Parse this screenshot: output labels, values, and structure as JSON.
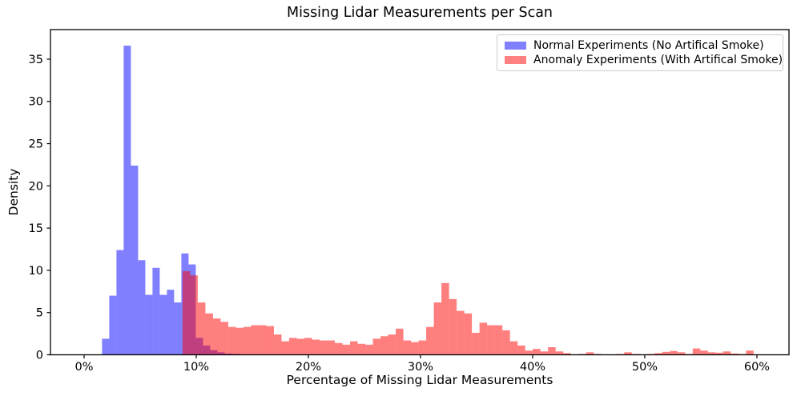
{
  "title": "Missing Lidar Measurements per Scan",
  "chart_data": {
    "type": "histogram",
    "title": "Missing Lidar Measurements per Scan",
    "xlabel": "Percentage of Missing Lidar Measurements",
    "ylabel": "Density",
    "xlim": [
      -3.0,
      62.86
    ],
    "ylim": [
      0,
      38.5
    ],
    "grid": false,
    "x_ticks": {
      "values": [
        0,
        10,
        20,
        30,
        40,
        50,
        60
      ],
      "labels": [
        "0%",
        "10%",
        "20%",
        "30%",
        "40%",
        "50%",
        "60%"
      ]
    },
    "y_ticks": {
      "values": [
        0,
        5,
        10,
        15,
        20,
        25,
        30,
        35
      ],
      "labels": [
        "0",
        "5",
        "10",
        "15",
        "20",
        "25",
        "30",
        "35"
      ]
    },
    "legend": {
      "position": "upper right",
      "entries": [
        {
          "label": "Normal Experiments (No Artifical Smoke)",
          "swatch_color": "#8080ff"
        },
        {
          "label": "Anomaly Experiments (With Artifical Smoke)",
          "swatch_color": "#ff8080"
        }
      ]
    },
    "series": [
      {
        "name": "Normal Experiments (No Artifical Smoke)",
        "color": "#0000ff",
        "fill_opacity": 0.5,
        "bin_start_pct": 1.6,
        "bin_width_pct": 0.643,
        "densities": [
          1.9,
          7.0,
          12.4,
          36.6,
          22.4,
          11.2,
          7.1,
          10.3,
          7.1,
          7.7,
          6.2,
          12.0,
          10.7,
          2.0,
          1.1,
          0.55,
          0.3,
          0.15,
          0.1,
          0.05
        ]
      },
      {
        "name": "Anomaly Experiments (With Artifical Smoke)",
        "color": "#ff0000",
        "fill_opacity": 0.5,
        "bin_start_pct": 8.78,
        "bin_width_pct": 0.679,
        "densities": [
          9.9,
          9.4,
          6.2,
          4.9,
          4.3,
          3.9,
          3.3,
          3.2,
          3.3,
          3.5,
          3.5,
          3.4,
          2.4,
          1.6,
          2.0,
          1.9,
          2.0,
          1.8,
          1.7,
          1.7,
          1.4,
          1.2,
          1.6,
          1.3,
          1.2,
          1.9,
          2.2,
          2.4,
          3.1,
          1.7,
          1.5,
          1.7,
          3.3,
          6.2,
          8.5,
          6.6,
          5.2,
          4.9,
          2.6,
          3.8,
          3.5,
          3.5,
          2.9,
          1.6,
          1.1,
          0.5,
          0.7,
          0.4,
          0.9,
          0.4,
          0.2,
          0,
          0.1,
          0.3,
          0.1,
          0,
          0,
          0.1,
          0.3,
          0.1,
          0,
          0.1,
          0.2,
          0.35,
          0.45,
          0.3,
          0.1,
          0.75,
          0.5,
          0.3,
          0.25,
          0.4,
          0.15,
          0.1,
          0.5
        ]
      }
    ]
  }
}
